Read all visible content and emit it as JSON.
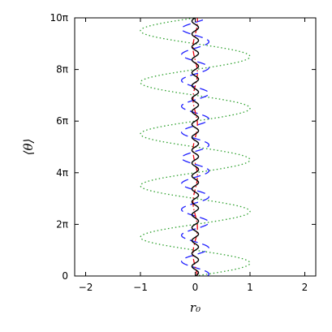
{
  "chart_data": {
    "type": "line",
    "xlabel": "r₀",
    "ylabel": "⟨θ⟩",
    "xlim": [
      -2.2,
      2.2
    ],
    "ylim": [
      0,
      31.4159
    ],
    "x_ticks": [
      {
        "value": -2,
        "label": "−2"
      },
      {
        "value": -1,
        "label": "−1"
      },
      {
        "value": 0,
        "label": "0"
      },
      {
        "value": 1,
        "label": "1"
      },
      {
        "value": 2,
        "label": "2"
      }
    ],
    "y_ticks": [
      {
        "value": 0,
        "label": "0"
      },
      {
        "value": 6.2832,
        "label": "2π"
      },
      {
        "value": 12.5664,
        "label": "4π"
      },
      {
        "value": 18.8496,
        "label": "6π"
      },
      {
        "value": 25.1327,
        "label": "8π"
      },
      {
        "value": 31.4159,
        "label": "10π"
      }
    ],
    "grid": false,
    "legend": "none",
    "series": [
      {
        "style": "dotted",
        "color": "#2ca02c",
        "r0_of_theta": "1.0·sin(θ)",
        "amplitude": 1.0,
        "periods": 5,
        "phase": 0
      },
      {
        "style": "dashed",
        "color": "#1f1fff",
        "r0_of_theta": "0.25·sin(2θ+1.1)",
        "amplitude": 0.25,
        "periods": 10,
        "phase": 1.1
      },
      {
        "style": "dashdot",
        "color": "#e8000b",
        "r0_of_theta": "0.04·sin(θ+2)",
        "amplitude": 0.04,
        "periods": 5,
        "phase": 2.0
      },
      {
        "style": "solid",
        "color": "#000000",
        "r0_of_theta": "0.06·sin(4θ)",
        "amplitude": 0.06,
        "periods": 20,
        "phase": 0
      }
    ]
  }
}
